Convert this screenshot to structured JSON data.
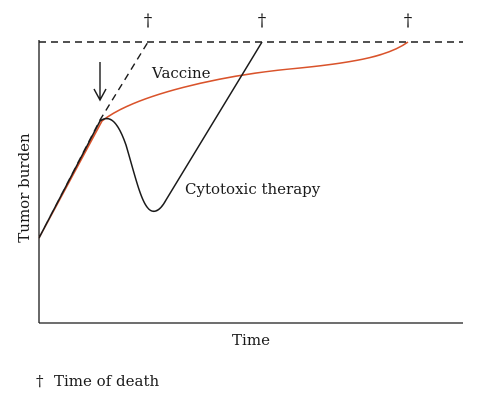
{
  "diagram": {
    "y_axis_label": "Tumor burden",
    "x_axis_label": "Time",
    "curve_labels": {
      "vaccine": "Vaccine",
      "cytotoxic": "Cytotoxic therapy"
    },
    "death_marker": "†",
    "legend": {
      "symbol": "†",
      "text": "Time of death"
    },
    "colors": {
      "vaccine_curve": "#d9532b",
      "curves": "#1a1a1a"
    }
  }
}
